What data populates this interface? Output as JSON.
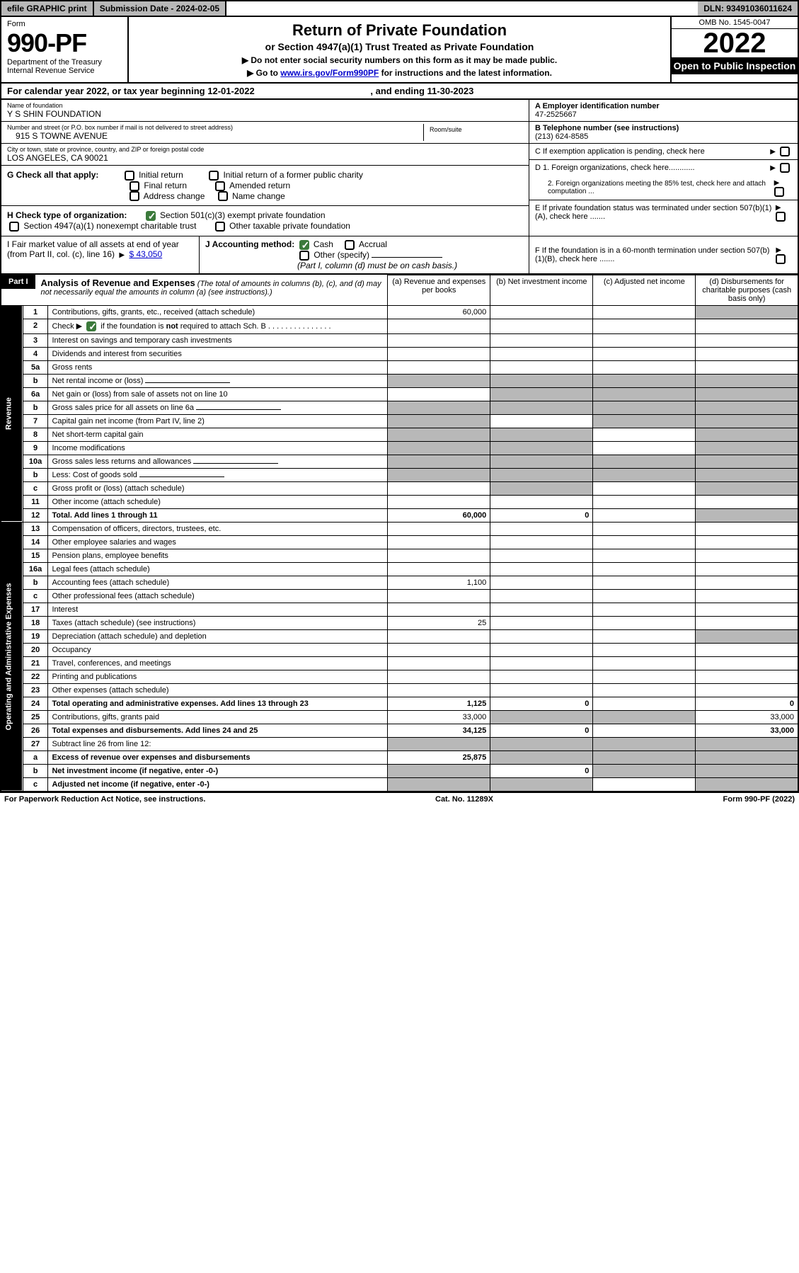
{
  "top": {
    "efile": "efile GRAPHIC print",
    "submission_label": "Submission Date - 2024-02-05",
    "dln": "DLN: 93491036011624"
  },
  "header": {
    "form_word": "Form",
    "form_no": "990-PF",
    "dept": "Department of the Treasury",
    "irs": "Internal Revenue Service",
    "title": "Return of Private Foundation",
    "subtitle": "or Section 4947(a)(1) Trust Treated as Private Foundation",
    "note1": "▶ Do not enter social security numbers on this form as it may be made public.",
    "note2_pre": "▶ Go to ",
    "note2_link": "www.irs.gov/Form990PF",
    "note2_post": " for instructions and the latest information.",
    "omb": "OMB No. 1545-0047",
    "year": "2022",
    "open": "Open to Public Inspection"
  },
  "calendar": {
    "text_pre": "For calendar year 2022, or tax year beginning ",
    "begin": "12-01-2022",
    "mid": " , and ending ",
    "end": "11-30-2023"
  },
  "entity": {
    "name_label": "Name of foundation",
    "name": "Y S SHIN FOUNDATION",
    "addr_label": "Number and street (or P.O. box number if mail is not delivered to street address)",
    "addr": "915 S TOWNE AVENUE",
    "room_label": "Room/suite",
    "city_label": "City or town, state or province, country, and ZIP or foreign postal code",
    "city": "LOS ANGELES, CA  90021",
    "ein_label": "A Employer identification number",
    "ein": "47-2525667",
    "phone_label": "B Telephone number (see instructions)",
    "phone": "(213) 624-8585",
    "c_label": "C If exemption application is pending, check here",
    "d1": "D 1. Foreign organizations, check here............",
    "d2": "2. Foreign organizations meeting the 85% test, check here and attach computation ...",
    "e_label": "E  If private foundation status was terminated under section 507(b)(1)(A), check here .......",
    "f_label": "F  If the foundation is in a 60-month termination under section 507(b)(1)(B), check here .......",
    "g_label": "G Check all that apply:",
    "g_opts": {
      "initial": "Initial return",
      "initial_former": "Initial return of a former public charity",
      "final": "Final return",
      "amended": "Amended return",
      "address": "Address change",
      "name_change": "Name change"
    },
    "h_label": "H Check type of organization:",
    "h_opts": {
      "501c3": "Section 501(c)(3) exempt private foundation",
      "4947": "Section 4947(a)(1) nonexempt charitable trust",
      "other_tax": "Other taxable private foundation"
    },
    "i_label": "I Fair market value of all assets at end of year (from Part II, col. (c), line 16)",
    "i_val": "$  43,050",
    "j_label": "J Accounting method:",
    "j_cash": "Cash",
    "j_accrual": "Accrual",
    "j_other": "Other (specify)",
    "j_note": "(Part I, column (d) must be on cash basis.)"
  },
  "part1": {
    "label": "Part I",
    "title": "Analysis of Revenue and Expenses",
    "desc": " (The total of amounts in columns (b), (c), and (d) may not necessarily equal the amounts in column (a) (see instructions).)",
    "cols": {
      "a": "(a)   Revenue and expenses per books",
      "b": "(b)   Net investment income",
      "c": "(c)   Adjusted net income",
      "d": "(d)   Disbursements for charitable purposes (cash basis only)"
    }
  },
  "sidebars": {
    "revenue": "Revenue",
    "operating": "Operating and Administrative Expenses"
  },
  "rows": [
    {
      "n": "1",
      "d": "Contributions, gifts, grants, etc., received (attach schedule)",
      "a": "60,000",
      "g": [
        "",
        "",
        "d"
      ]
    },
    {
      "n": "2",
      "d": "Check ▶ [✓] if the foundation is not required to attach Sch. B",
      "span": true
    },
    {
      "n": "3",
      "d": "Interest on savings and temporary cash investments"
    },
    {
      "n": "4",
      "d": "Dividends and interest from securities"
    },
    {
      "n": "5a",
      "d": "Gross rents"
    },
    {
      "n": "b",
      "d": "Net rental income or (loss)",
      "inline": true,
      "g": [
        "a",
        "b",
        "c",
        "d"
      ]
    },
    {
      "n": "6a",
      "d": "Net gain or (loss) from sale of assets not on line 10",
      "g": [
        "",
        "b",
        "c",
        "d"
      ]
    },
    {
      "n": "b",
      "d": "Gross sales price for all assets on line 6a",
      "inline": true,
      "g": [
        "a",
        "b",
        "c",
        "d"
      ]
    },
    {
      "n": "7",
      "d": "Capital gain net income (from Part IV, line 2)",
      "g": [
        "a",
        "",
        "c",
        "d"
      ]
    },
    {
      "n": "8",
      "d": "Net short-term capital gain",
      "g": [
        "a",
        "b",
        "",
        "d"
      ]
    },
    {
      "n": "9",
      "d": "Income modifications",
      "g": [
        "a",
        "b",
        "",
        "d"
      ]
    },
    {
      "n": "10a",
      "d": "Gross sales less returns and allowances",
      "inline": true,
      "g": [
        "a",
        "b",
        "c",
        "d"
      ]
    },
    {
      "n": "b",
      "d": "Less: Cost of goods sold",
      "inline": true,
      "g": [
        "a",
        "b",
        "c",
        "d"
      ]
    },
    {
      "n": "c",
      "d": "Gross profit or (loss) (attach schedule)",
      "g": [
        "",
        "b",
        "",
        "d"
      ]
    },
    {
      "n": "11",
      "d": "Other income (attach schedule)"
    },
    {
      "n": "12",
      "d": "Total. Add lines 1 through 11",
      "a": "60,000",
      "b": "0",
      "bold": true,
      "g": [
        "",
        "",
        "",
        "d"
      ]
    },
    {
      "n": "13",
      "d": "Compensation of officers, directors, trustees, etc."
    },
    {
      "n": "14",
      "d": "Other employee salaries and wages"
    },
    {
      "n": "15",
      "d": "Pension plans, employee benefits"
    },
    {
      "n": "16a",
      "d": "Legal fees (attach schedule)"
    },
    {
      "n": "b",
      "d": "Accounting fees (attach schedule)",
      "a": "1,100"
    },
    {
      "n": "c",
      "d": "Other professional fees (attach schedule)"
    },
    {
      "n": "17",
      "d": "Interest"
    },
    {
      "n": "18",
      "d": "Taxes (attach schedule) (see instructions)",
      "a": "25"
    },
    {
      "n": "19",
      "d": "Depreciation (attach schedule) and depletion",
      "g": [
        "",
        "",
        "",
        "d"
      ]
    },
    {
      "n": "20",
      "d": "Occupancy"
    },
    {
      "n": "21",
      "d": "Travel, conferences, and meetings"
    },
    {
      "n": "22",
      "d": "Printing and publications"
    },
    {
      "n": "23",
      "d": "Other expenses (attach schedule)"
    },
    {
      "n": "24",
      "d": "Total operating and administrative expenses. Add lines 13 through 23",
      "a": "1,125",
      "b": "0",
      "dv": "0",
      "bold": true
    },
    {
      "n": "25",
      "d": "Contributions, gifts, grants paid",
      "a": "33,000",
      "dv": "33,000",
      "g": [
        "",
        "b",
        "c",
        ""
      ]
    },
    {
      "n": "26",
      "d": "Total expenses and disbursements. Add lines 24 and 25",
      "a": "34,125",
      "b": "0",
      "dv": "33,000",
      "bold": true
    },
    {
      "n": "27",
      "d": "Subtract line 26 from line 12:",
      "g": [
        "a",
        "b",
        "c",
        "d"
      ]
    },
    {
      "n": "a",
      "d": "Excess of revenue over expenses and disbursements",
      "a": "25,875",
      "bold": true,
      "g": [
        "",
        "b",
        "c",
        "d"
      ]
    },
    {
      "n": "b",
      "d": "Net investment income (if negative, enter -0-)",
      "b": "0",
      "bold": true,
      "g": [
        "a",
        "",
        "c",
        "d"
      ]
    },
    {
      "n": "c",
      "d": "Adjusted net income (if negative, enter -0-)",
      "bold": true,
      "g": [
        "a",
        "b",
        "",
        "d"
      ]
    }
  ],
  "footer": {
    "left": "For Paperwork Reduction Act Notice, see instructions.",
    "mid": "Cat. No. 11289X",
    "right": "Form 990-PF (2022)"
  },
  "colors": {
    "gray": "#b8b8b8",
    "green": "#3b7a3b",
    "link": "#0000cc"
  }
}
